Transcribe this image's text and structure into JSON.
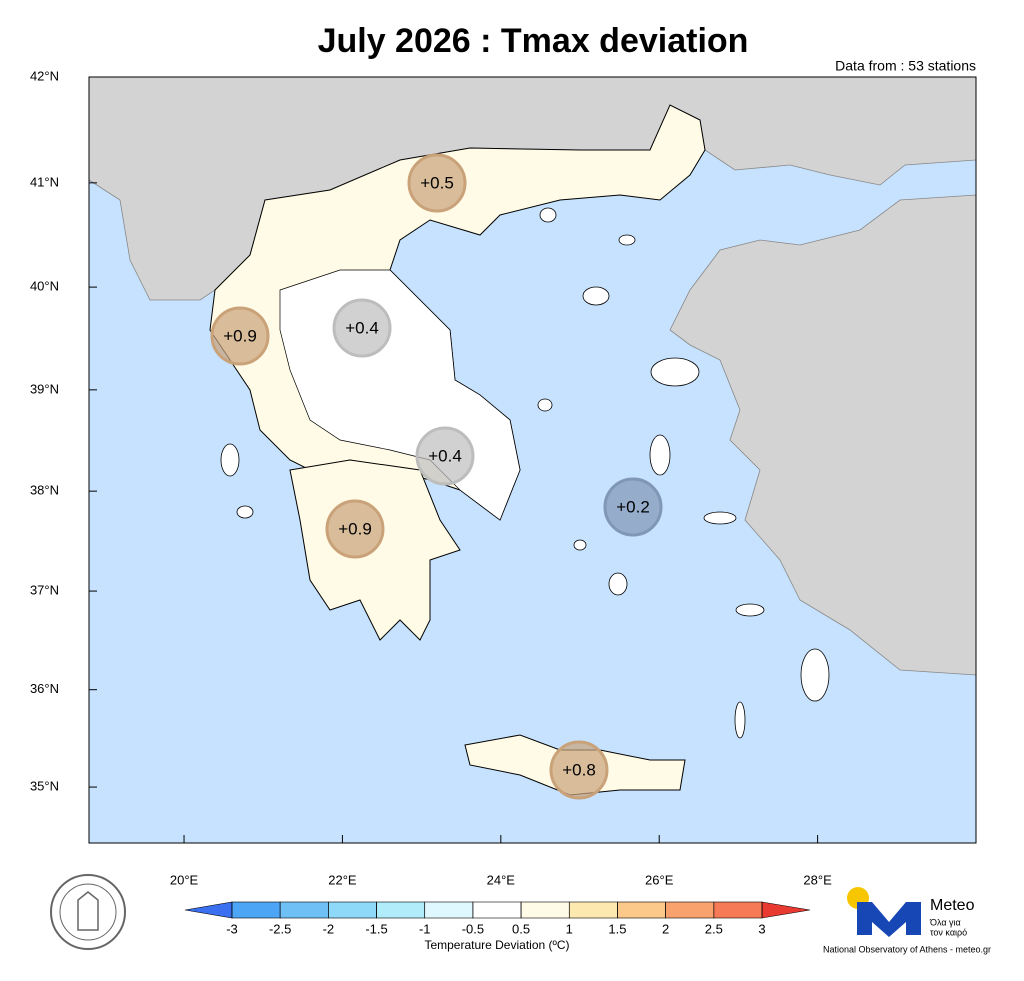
{
  "map": {
    "title": "July 2026 : Tmax deviation",
    "subtitle": "Data from : 53 stations",
    "xlim": [
      18.8,
      30.0
    ],
    "ylim": [
      34.42,
      42.0
    ],
    "xticks": [
      {
        "value": 20,
        "label": "20°E"
      },
      {
        "value": 22,
        "label": "22°E"
      },
      {
        "value": 24,
        "label": "24°E"
      },
      {
        "value": 26,
        "label": "26°E"
      },
      {
        "value": 28,
        "label": "28°E"
      }
    ],
    "yticks": [
      {
        "value": 35,
        "label": "35°N"
      },
      {
        "value": 36,
        "label": "36°N"
      },
      {
        "value": 37,
        "label": "37°N"
      },
      {
        "value": 38,
        "label": "38°N"
      },
      {
        "value": 39,
        "label": "39°N"
      },
      {
        "value": 40,
        "label": "40°N"
      },
      {
        "value": 41,
        "label": "41°N"
      },
      {
        "value": 42,
        "label": "42°N"
      }
    ]
  },
  "markers": {
    "values": [
      0.5,
      0.9,
      0.4,
      0.4,
      0.9,
      0.2,
      0.8
    ],
    "value_labels": [
      "+0.5",
      "+0.9",
      "+0.4",
      "+0.4",
      "+0.9",
      "+0.2",
      "+0.8"
    ],
    "colors": [
      "#c9a27a",
      "#c9a27a",
      "#bdbdbd",
      "#bdbdbd",
      "#c9a27a",
      "#8097b5",
      "#c9a27a"
    ]
  },
  "colorbar": {
    "label": "Temperature Deviation (ºC)",
    "ticks": [
      -3,
      -2.5,
      -2,
      -1.5,
      -1,
      -0.5,
      0.5,
      1,
      1.5,
      2,
      2.5,
      3
    ],
    "colors": [
      "#4da6f5",
      "#6fc0f5",
      "#8ed8f8",
      "#b0ecfa",
      "#dff8ff",
      "#ffffff",
      "#fffbe6",
      "#fde8b0",
      "#fcc98a",
      "#f9a26e",
      "#f57a55"
    ],
    "under_color": "#3a6ff0",
    "over_color": "#e83a30"
  },
  "logo": {
    "name": "Meteo",
    "slogan_1": "Όλα για",
    "slogan_2": "τον καιρό",
    "footer": "National Observatory of Athens - meteo.gr"
  }
}
